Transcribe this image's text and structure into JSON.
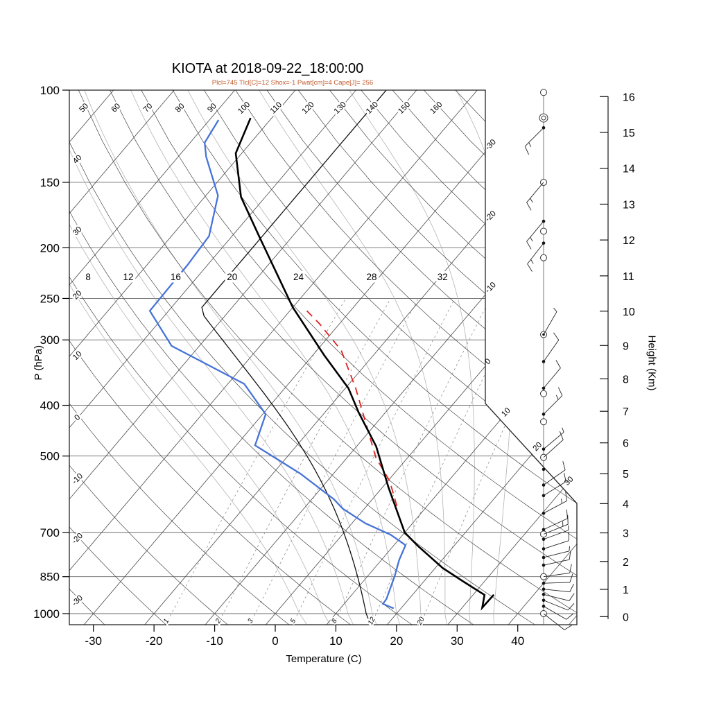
{
  "header": {
    "title": "KIOTA at 2018-09-22_18:00:00",
    "subtitle": "Plcl=745 Tlcl[C]=12 Shox=-1 Pwat[cm]=4 Cape[J]= 256"
  },
  "axes": {
    "pressure": {
      "label": "P (hPa)",
      "ticks": [
        100,
        150,
        200,
        250,
        300,
        400,
        500,
        700,
        850,
        1000
      ]
    },
    "temperature": {
      "label": "Temperature (C)",
      "ticks": [
        -30,
        -20,
        -10,
        0,
        10,
        20,
        30,
        40
      ]
    },
    "height": {
      "label": "Height (Km)",
      "ticks": [
        0,
        1,
        2,
        3,
        4,
        5,
        6,
        7,
        8,
        9,
        10,
        11,
        12,
        13,
        14,
        15,
        16
      ]
    }
  },
  "chart_data": {
    "type": "skewt-log-p-sounding",
    "title": "KIOTA at 2018-09-22_18:00:00",
    "subtitle": "Plcl=745 Tlcl[C]=12 Shox=-1 Pwat[cm]=4 Cape[J]= 256",
    "derived_indices": {
      "Plcl_hPa": 745,
      "Tlcl_C": 12,
      "Shox": -1,
      "Pwat_cm": 4,
      "Cape_J": 256
    },
    "pressure_range_hPa": [
      100,
      1050
    ],
    "temp_axis_range_C": [
      -35,
      52
    ],
    "skew": "45deg-isotherms",
    "isotherms": {
      "min": -100,
      "max": 50,
      "step": 10,
      "right_edge_labels": [
        -30,
        -20,
        -10,
        0
      ],
      "diagonal_edge_labels": [
        10,
        20,
        30
      ]
    },
    "dry_adiabats": {
      "min": -30,
      "max": 170,
      "step": 10,
      "top_labels": [
        50,
        60,
        70,
        80,
        90,
        100,
        110,
        120,
        130,
        140,
        150,
        160
      ],
      "left_labels": [
        40,
        30,
        20,
        10,
        0,
        -10,
        -20,
        -30
      ]
    },
    "moist_adiabats": {
      "values": [
        4,
        8,
        12,
        16,
        20,
        24,
        28,
        32,
        36
      ],
      "labels": [
        8,
        12,
        16,
        20,
        24,
        28,
        32
      ],
      "label_pressure_hPa": 228
    },
    "mixing_ratio_lines": {
      "values_g_kg": [
        1,
        2,
        3,
        5,
        8,
        12,
        20
      ]
    },
    "colors": {
      "temperature": "#000000",
      "dewpoint": "#4673d8",
      "parcel": "#e02020",
      "parcel_wet_adiabat": "#111111",
      "grid_dark": "#474747",
      "grid_moist": "#b4b4b4",
      "grid_mix": "#8f8f8f",
      "isobar": "#6a6a6a",
      "subtitle": "#bf5b2d"
    },
    "series": {
      "temperature": {
        "name": "temperature",
        "units": "C,hPa",
        "points_p_T": [
          [
            113,
            -73.5
          ],
          [
            132,
            -71.0
          ],
          [
            160,
            -64.0
          ],
          [
            191,
            -55.3
          ],
          [
            260,
            -40.0
          ],
          [
            321,
            -28.1
          ],
          [
            371,
            -19.5
          ],
          [
            413,
            -14.4
          ],
          [
            479,
            -6.8
          ],
          [
            574,
            1.0
          ],
          [
            700,
            10.0
          ],
          [
            742,
            14.0
          ],
          [
            818,
            21.2
          ],
          [
            868,
            26.5
          ],
          [
            921,
            31.9
          ],
          [
            974,
            33.3
          ],
          [
            920,
            33.4
          ]
        ]
      },
      "dewpoint": {
        "name": "dewpoint",
        "units": "C,hPa",
        "points_p_T": [
          [
            114,
            -78.5
          ],
          [
            126,
            -77.6
          ],
          [
            134,
            -75.4
          ],
          [
            159,
            -68.0
          ],
          [
            190,
            -63.8
          ],
          [
            216,
            -63.3
          ],
          [
            264,
            -63.1
          ],
          [
            308,
            -54.6
          ],
          [
            364,
            -37.3
          ],
          [
            416,
            -29.5
          ],
          [
            477,
            -26.9
          ],
          [
            540,
            -15.5
          ],
          [
            605,
            -6.3
          ],
          [
            630,
            -3.6
          ],
          [
            672,
            2.2
          ],
          [
            707,
            8.0
          ],
          [
            740,
            11.9
          ],
          [
            789,
            12.9
          ],
          [
            846,
            14.4
          ],
          [
            938,
            16.3
          ],
          [
            958,
            16.4
          ],
          [
            977,
            18.8
          ]
        ]
      },
      "parcel_path": {
        "name": "parcel",
        "dashed": true,
        "units": "C,hPa",
        "points_p_T": [
          [
            264,
            -37.2
          ],
          [
            279,
            -33.4
          ],
          [
            314,
            -26.0
          ],
          [
            371,
            -18.3
          ],
          [
            503,
            -5.3
          ],
          [
            558,
            0.3
          ],
          [
            629,
            5.4
          ]
        ]
      },
      "parcel_wet_adiabat": {
        "name": "parcel-wet-adiabat",
        "theta_w_C": 15,
        "clamp_T_C": -55
      }
    },
    "wind_barbs": [
      {
        "p": 101,
        "marker": "circle"
      },
      {
        "p": 113,
        "marker": "dblcircle"
      },
      {
        "p": 118,
        "marker": "dot",
        "dir": 225,
        "full": 1,
        "half": 1
      },
      {
        "p": 150,
        "marker": "circle",
        "dir": 230,
        "full": 1,
        "half": 1
      },
      {
        "p": 178,
        "marker": "dot",
        "dir": 230,
        "full": 1,
        "half": 1
      },
      {
        "p": 186,
        "marker": "circle"
      },
      {
        "p": 196,
        "marker": "dot",
        "dir": 232,
        "full": 1,
        "half": 1
      },
      {
        "p": 209,
        "marker": "circle"
      },
      {
        "p": 293,
        "marker": "dotcircle",
        "dir": 60,
        "full": 0,
        "half": 1
      },
      {
        "p": 330,
        "marker": "dot",
        "dir": 55,
        "full": 1,
        "half": 0
      },
      {
        "p": 371,
        "marker": "dot",
        "dir": 50,
        "full": 1,
        "half": 0
      },
      {
        "p": 380,
        "marker": "circle"
      },
      {
        "p": 416,
        "marker": "dot",
        "dir": 45,
        "full": 1,
        "half": 1
      },
      {
        "p": 430,
        "marker": "circle"
      },
      {
        "p": 485,
        "marker": "dot",
        "dir": 40,
        "full": 0,
        "half": 1
      },
      {
        "p": 503,
        "marker": "circle",
        "dir": 42,
        "full": 1,
        "half": 0
      },
      {
        "p": 530,
        "marker": "dot"
      },
      {
        "p": 568,
        "marker": "dot",
        "dir": 35,
        "full": 1,
        "half": 0
      },
      {
        "p": 595,
        "marker": "dot",
        "dir": 32,
        "full": 1,
        "half": 0
      },
      {
        "p": 643,
        "marker": "dot",
        "dir": 28,
        "full": 1,
        "half": 1
      },
      {
        "p": 691,
        "marker": "dot",
        "dir": 25,
        "full": 1,
        "half": 0
      },
      {
        "p": 705,
        "marker": "circle",
        "dir": 22,
        "full": 1,
        "half": 1
      },
      {
        "p": 721,
        "marker": "dot",
        "dir": 20,
        "full": 0,
        "half": 1
      },
      {
        "p": 752,
        "marker": "dot",
        "dir": 18,
        "full": 1,
        "half": 0
      },
      {
        "p": 781,
        "marker": "dot",
        "dir": 14,
        "full": 0,
        "half": 1
      },
      {
        "p": 808,
        "marker": "dot",
        "dir": 12,
        "full": 1,
        "half": 0
      },
      {
        "p": 850,
        "marker": "circle",
        "dir": 8,
        "full": 1,
        "half": 0
      },
      {
        "p": 875,
        "marker": "dot",
        "dir": 2,
        "full": 1,
        "half": 0
      },
      {
        "p": 898,
        "marker": "dot",
        "dir": -6,
        "full": 1,
        "half": 0
      },
      {
        "p": 919,
        "marker": "dot",
        "dir": -14,
        "full": 1,
        "half": 0
      },
      {
        "p": 943,
        "marker": "dot",
        "dir": -22,
        "full": 1,
        "half": 0
      },
      {
        "p": 968,
        "marker": "dot",
        "dir": -30,
        "full": 1,
        "half": 0
      },
      {
        "p": 1000,
        "marker": "circle",
        "dir": -38,
        "full": 1,
        "half": 0
      }
    ]
  }
}
